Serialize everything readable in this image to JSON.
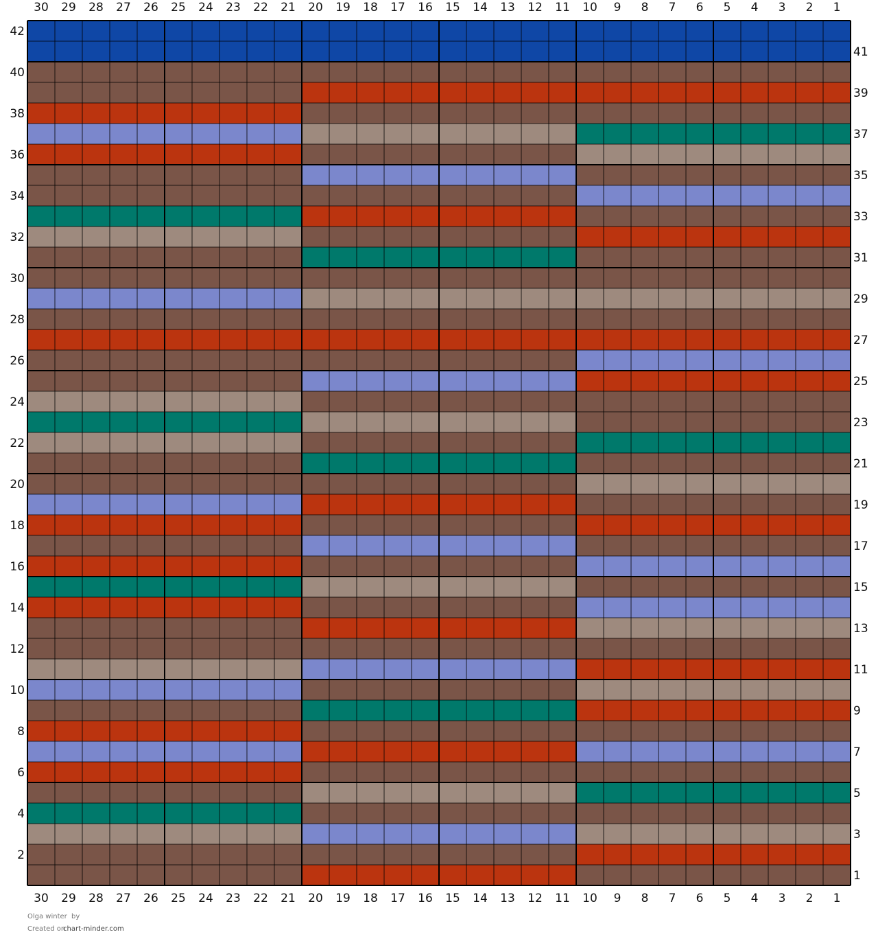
{
  "columns": [
    30,
    29,
    28,
    27,
    26,
    25,
    24,
    23,
    22,
    21,
    20,
    19,
    18,
    17,
    16,
    15,
    14,
    13,
    12,
    11,
    10,
    9,
    8,
    7,
    6,
    5,
    4,
    3,
    2,
    1
  ],
  "rows": [
    {
      "label": 42,
      "colors": [
        "#0f47a6",
        "#0f47a6",
        "#0f47a6"
      ]
    },
    {
      "label": 41,
      "colors": [
        "#0f47a6",
        "#0f47a6",
        "#0f47a6"
      ]
    },
    {
      "label": 40,
      "colors": [
        "#7a5548",
        "#7a5548",
        "#7a5548"
      ]
    },
    {
      "label": 39,
      "colors": [
        "#7a5548",
        "#bb340f",
        "#bb340f"
      ]
    },
    {
      "label": 38,
      "colors": [
        "#bb340f",
        "#7a5548",
        "#7a5548"
      ]
    },
    {
      "label": 37,
      "colors": [
        "#7b87cc",
        "#9e8a7e",
        "#00796b"
      ]
    },
    {
      "label": 36,
      "colors": [
        "#bb340f",
        "#7a5548",
        "#9e8a7e"
      ]
    },
    {
      "label": 35,
      "colors": [
        "#7a5548",
        "#7b87cc",
        "#7a5548"
      ]
    },
    {
      "label": 34,
      "colors": [
        "#7a5548",
        "#7a5548",
        "#7b87cc"
      ]
    },
    {
      "label": 33,
      "colors": [
        "#00796b",
        "#bb340f",
        "#7a5548"
      ]
    },
    {
      "label": 32,
      "colors": [
        "#9e8a7e",
        "#7a5548",
        "#bb340f"
      ]
    },
    {
      "label": 31,
      "colors": [
        "#7a5548",
        "#00796b",
        "#7a5548"
      ]
    },
    {
      "label": 30,
      "colors": [
        "#7a5548",
        "#7a5548",
        "#7a5548"
      ]
    },
    {
      "label": 29,
      "colors": [
        "#7b87cc",
        "#9e8a7e",
        "#9e8a7e"
      ]
    },
    {
      "label": 28,
      "colors": [
        "#7a5548",
        "#7a5548",
        "#7a5548"
      ]
    },
    {
      "label": 27,
      "colors": [
        "#bb340f",
        "#bb340f",
        "#bb340f"
      ]
    },
    {
      "label": 26,
      "colors": [
        "#7a5548",
        "#7a5548",
        "#7b87cc"
      ]
    },
    {
      "label": 25,
      "colors": [
        "#7a5548",
        "#7b87cc",
        "#bb340f"
      ]
    },
    {
      "label": 24,
      "colors": [
        "#9e8a7e",
        "#7a5548",
        "#7a5548"
      ]
    },
    {
      "label": 23,
      "colors": [
        "#00796b",
        "#9e8a7e",
        "#7a5548"
      ]
    },
    {
      "label": 22,
      "colors": [
        "#9e8a7e",
        "#7a5548",
        "#00796b"
      ]
    },
    {
      "label": 21,
      "colors": [
        "#7a5548",
        "#00796b",
        "#7a5548"
      ]
    },
    {
      "label": 20,
      "colors": [
        "#7a5548",
        "#7a5548",
        "#9e8a7e"
      ]
    },
    {
      "label": 19,
      "colors": [
        "#7b87cc",
        "#bb340f",
        "#7a5548"
      ]
    },
    {
      "label": 18,
      "colors": [
        "#bb340f",
        "#7a5548",
        "#bb340f"
      ]
    },
    {
      "label": 17,
      "colors": [
        "#7a5548",
        "#7b87cc",
        "#7a5548"
      ]
    },
    {
      "label": 16,
      "colors": [
        "#bb340f",
        "#7a5548",
        "#7b87cc"
      ]
    },
    {
      "label": 15,
      "colors": [
        "#00796b",
        "#9e8a7e",
        "#7a5548"
      ]
    },
    {
      "label": 14,
      "colors": [
        "#bb340f",
        "#7a5548",
        "#7b87cc"
      ]
    },
    {
      "label": 13,
      "colors": [
        "#7a5548",
        "#bb340f",
        "#9e8a7e"
      ]
    },
    {
      "label": 12,
      "colors": [
        "#7a5548",
        "#7a5548",
        "#7a5548"
      ]
    },
    {
      "label": 11,
      "colors": [
        "#9e8a7e",
        "#7b87cc",
        "#bb340f"
      ]
    },
    {
      "label": 10,
      "colors": [
        "#7b87cc",
        "#7a5548",
        "#9e8a7e"
      ]
    },
    {
      "label": 9,
      "colors": [
        "#7a5548",
        "#00796b",
        "#bb340f"
      ]
    },
    {
      "label": 8,
      "colors": [
        "#bb340f",
        "#7a5548",
        "#7a5548"
      ]
    },
    {
      "label": 7,
      "colors": [
        "#7b87cc",
        "#bb340f",
        "#7b87cc"
      ]
    },
    {
      "label": 6,
      "colors": [
        "#bb340f",
        "#7a5548",
        "#7a5548"
      ]
    },
    {
      "label": 5,
      "colors": [
        "#7a5548",
        "#9e8a7e",
        "#00796b"
      ]
    },
    {
      "label": 4,
      "colors": [
        "#00796b",
        "#7a5548",
        "#7a5548"
      ]
    },
    {
      "label": 3,
      "colors": [
        "#9e8a7e",
        "#7b87cc",
        "#9e8a7e"
      ]
    },
    {
      "label": 2,
      "colors": [
        "#7a5548",
        "#7a5548",
        "#bb340f"
      ]
    },
    {
      "label": 1,
      "colors": [
        "#7a5548",
        "#bb340f",
        "#7a5548"
      ]
    }
  ],
  "footer": {
    "title": "Olga winter",
    "by": "by",
    "created": "Created on",
    "site": "chart-minder.com"
  }
}
